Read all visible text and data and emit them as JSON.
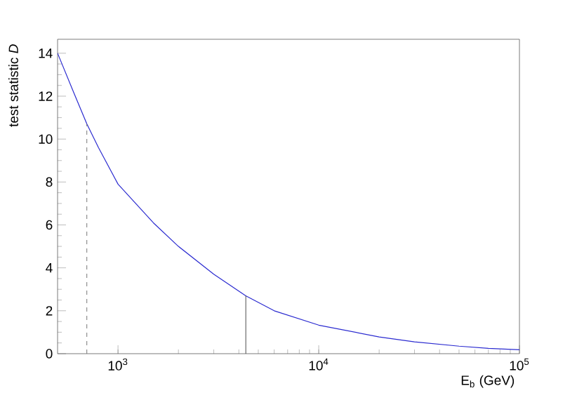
{
  "chart_data": {
    "type": "line",
    "xlabel": "E$_{b}$ (GeV)",
    "ylabel": "test statistic *D*",
    "log": "x",
    "xlim": [
      500,
      100000
    ],
    "ylim": [
      0,
      14.65
    ],
    "xticks": [
      {
        "value": 1000,
        "label": "10$^{3}$"
      },
      {
        "value": 10000,
        "label": "10$^{4}$"
      },
      {
        "value": 100000,
        "label": "10$^{5}$"
      }
    ],
    "yticks": [
      0,
      2,
      4,
      6,
      8,
      10,
      12,
      14
    ],
    "series": [
      {
        "color": "#2b2bd0",
        "line_style": "solid",
        "x": [
          500,
          600,
          700,
          800,
          1000,
          1500,
          2000,
          3000,
          4330,
          6000,
          10000,
          20000,
          30000,
          50000,
          70000,
          100000
        ],
        "values": [
          14.0,
          12.2,
          10.7,
          9.6,
          7.9,
          6.1,
          5.0,
          3.7,
          2.7,
          2.0,
          1.33,
          0.78,
          0.55,
          0.35,
          0.25,
          0.18
        ]
      },
      {
        "color": "#777777",
        "line_style": "dashed",
        "x": [
          700,
          700
        ],
        "values": [
          0,
          10.7
        ]
      },
      {
        "color": "#555555",
        "line_style": "solid",
        "x": [
          4330,
          4330
        ],
        "values": [
          0,
          2.7
        ]
      }
    ]
  }
}
